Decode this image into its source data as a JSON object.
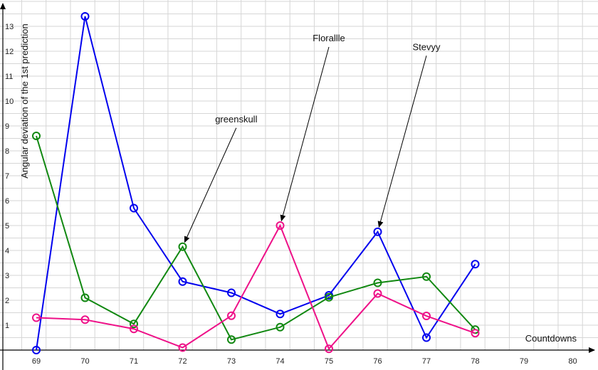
{
  "chart_data": {
    "type": "line",
    "x": [
      69,
      70,
      71,
      72,
      73,
      74,
      75,
      76,
      77,
      78
    ],
    "xlabel": "Countdowns",
    "ylabel": "Angular deviation of the 1st prediction",
    "xlim": [
      68.7,
      80.4
    ],
    "ylim": [
      -0.5,
      14
    ],
    "xticks": [
      69,
      70,
      71,
      72,
      73,
      74,
      75,
      76,
      77,
      78,
      79,
      80
    ],
    "yticks": [
      1,
      2,
      3,
      4,
      5,
      6,
      7,
      8,
      9,
      10,
      11,
      12,
      13
    ],
    "grid": true,
    "series": [
      {
        "color": "#0000ee",
        "values": [
          0.0,
          13.4,
          5.7,
          2.75,
          2.3,
          1.45,
          2.2,
          4.75,
          0.5,
          3.45
        ]
      },
      {
        "color": "#118811",
        "values": [
          8.6,
          2.1,
          1.05,
          4.15,
          0.42,
          0.92,
          2.12,
          2.7,
          2.95,
          0.82
        ]
      },
      {
        "color": "#ee1188",
        "values": [
          1.3,
          1.22,
          0.85,
          0.1,
          1.38,
          5.0,
          0.05,
          2.27,
          1.37,
          0.68
        ]
      }
    ],
    "annotations": [
      {
        "text": "greenskull",
        "x": 72,
        "y": 4.15
      },
      {
        "text": "Florallle",
        "x": 74,
        "y": 5.0
      },
      {
        "text": "Stevyy",
        "x": 76,
        "y": 4.75
      }
    ]
  }
}
